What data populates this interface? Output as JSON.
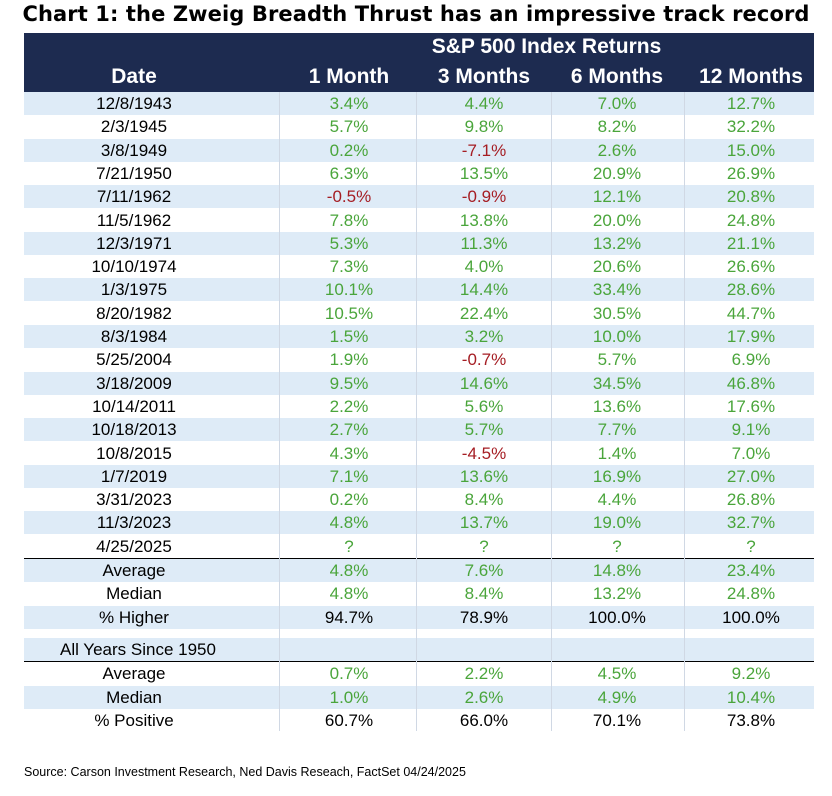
{
  "title": "Chart 1: the Zweig Breadth Thrust has an impressive track record",
  "header": {
    "group_label": "S&P 500 Index Returns",
    "columns": [
      "Date",
      "1 Month",
      "3 Months",
      "6 Months",
      "12 Months"
    ]
  },
  "colors": {
    "header_bg": "#1d2b50",
    "positive": "#4aa53b",
    "negative": "#a51d23",
    "row_shade": "#deebf7"
  },
  "chart_data": {
    "type": "table",
    "columns": [
      "Date",
      "1 Month",
      "3 Months",
      "6 Months",
      "12 Months"
    ],
    "rows": [
      [
        "12/8/1943",
        "3.4%",
        "4.4%",
        "7.0%",
        "12.7%"
      ],
      [
        "2/3/1945",
        "5.7%",
        "9.8%",
        "8.2%",
        "32.2%"
      ],
      [
        "3/8/1949",
        "0.2%",
        "-7.1%",
        "2.6%",
        "15.0%"
      ],
      [
        "7/21/1950",
        "6.3%",
        "13.5%",
        "20.9%",
        "26.9%"
      ],
      [
        "7/11/1962",
        "-0.5%",
        "-0.9%",
        "12.1%",
        "20.8%"
      ],
      [
        "11/5/1962",
        "7.8%",
        "13.8%",
        "20.0%",
        "24.8%"
      ],
      [
        "12/3/1971",
        "5.3%",
        "11.3%",
        "13.2%",
        "21.1%"
      ],
      [
        "10/10/1974",
        "7.3%",
        "4.0%",
        "20.6%",
        "26.6%"
      ],
      [
        "1/3/1975",
        "10.1%",
        "14.4%",
        "33.4%",
        "28.6%"
      ],
      [
        "8/20/1982",
        "10.5%",
        "22.4%",
        "30.5%",
        "44.7%"
      ],
      [
        "8/3/1984",
        "1.5%",
        "3.2%",
        "10.0%",
        "17.9%"
      ],
      [
        "5/25/2004",
        "1.9%",
        "-0.7%",
        "5.7%",
        "6.9%"
      ],
      [
        "3/18/2009",
        "9.5%",
        "14.6%",
        "34.5%",
        "46.8%"
      ],
      [
        "10/14/2011",
        "2.2%",
        "5.6%",
        "13.6%",
        "17.6%"
      ],
      [
        "10/18/2013",
        "2.7%",
        "5.7%",
        "7.7%",
        "9.1%"
      ],
      [
        "10/8/2015",
        "4.3%",
        "-4.5%",
        "1.4%",
        "7.0%"
      ],
      [
        "1/7/2019",
        "7.1%",
        "13.6%",
        "16.9%",
        "27.0%"
      ],
      [
        "3/31/2023",
        "0.2%",
        "8.4%",
        "4.4%",
        "26.8%"
      ],
      [
        "11/3/2023",
        "4.8%",
        "13.7%",
        "19.0%",
        "32.7%"
      ],
      [
        "4/25/2025",
        "?",
        "?",
        "?",
        "?"
      ]
    ],
    "summary": [
      [
        "Average",
        "4.8%",
        "7.6%",
        "14.8%",
        "23.4%"
      ],
      [
        "Median",
        "4.8%",
        "8.4%",
        "13.2%",
        "24.8%"
      ],
      [
        "% Higher",
        "94.7%",
        "78.9%",
        "100.0%",
        "100.0%"
      ]
    ],
    "section_label": "All Years Since 1950",
    "all_years": [
      [
        "Average",
        "0.7%",
        "2.2%",
        "4.5%",
        "9.2%"
      ],
      [
        "Median",
        "1.0%",
        "2.6%",
        "4.9%",
        "10.4%"
      ],
      [
        "% Positive",
        "60.7%",
        "66.0%",
        "70.1%",
        "73.8%"
      ]
    ]
  },
  "source": "Source: Carson Investment Research, Ned Davis Reseach, FactSet 04/24/2025"
}
